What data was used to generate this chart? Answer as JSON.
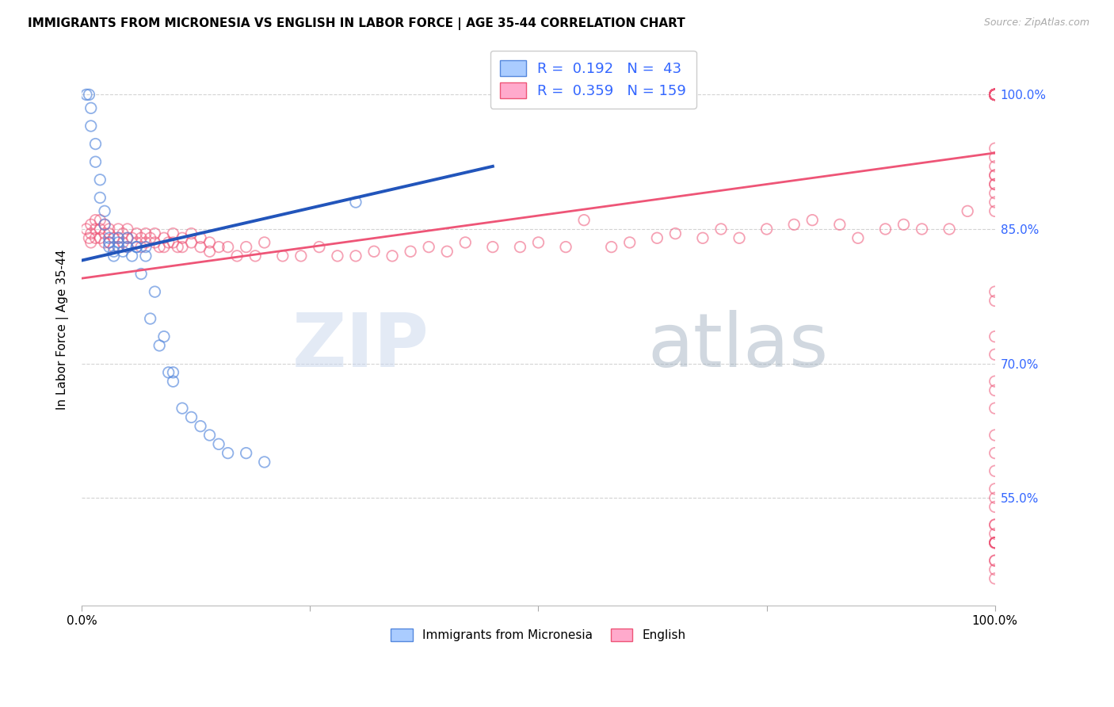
{
  "title": "IMMIGRANTS FROM MICRONESIA VS ENGLISH IN LABOR FORCE | AGE 35-44 CORRELATION CHART",
  "source_text": "Source: ZipAtlas.com",
  "ylabel": "In Labor Force | Age 35-44",
  "xlim": [
    0,
    1.0
  ],
  "ylim": [
    0.43,
    1.045
  ],
  "ytick_labels": [
    "55.0%",
    "70.0%",
    "85.0%",
    "100.0%"
  ],
  "ytick_positions": [
    0.55,
    0.7,
    0.85,
    1.0
  ],
  "grid_color": "#cccccc",
  "background_color": "#ffffff",
  "legend_R_blue": "0.192",
  "legend_N_blue": "43",
  "legend_R_pink": "0.359",
  "legend_N_pink": "159",
  "legend_label_blue": "Immigrants from Micronesia",
  "legend_label_pink": "English",
  "blue_color_edge": "#5588dd",
  "blue_color_face": "#aaccff",
  "pink_color_edge": "#ee5577",
  "pink_color_face": "#ffaacc",
  "blue_line_color": "#2255bb",
  "pink_line_color": "#ee5577",
  "watermark_zip": "ZIP",
  "watermark_atlas": "atlas",
  "blue_x": [
    0.005,
    0.008,
    0.01,
    0.01,
    0.015,
    0.015,
    0.02,
    0.02,
    0.025,
    0.025,
    0.03,
    0.03,
    0.03,
    0.035,
    0.035,
    0.04,
    0.04,
    0.04,
    0.045,
    0.05,
    0.05,
    0.055,
    0.06,
    0.06,
    0.065,
    0.07,
    0.07,
    0.075,
    0.08,
    0.085,
    0.09,
    0.095,
    0.1,
    0.1,
    0.11,
    0.12,
    0.13,
    0.14,
    0.15,
    0.16,
    0.18,
    0.2,
    0.3
  ],
  "blue_y": [
    1.0,
    1.0,
    0.985,
    0.965,
    0.945,
    0.925,
    0.905,
    0.885,
    0.87,
    0.855,
    0.84,
    0.835,
    0.83,
    0.825,
    0.82,
    0.84,
    0.835,
    0.83,
    0.825,
    0.84,
    0.83,
    0.82,
    0.83,
    0.83,
    0.8,
    0.83,
    0.82,
    0.75,
    0.78,
    0.72,
    0.73,
    0.69,
    0.69,
    0.68,
    0.65,
    0.64,
    0.63,
    0.62,
    0.61,
    0.6,
    0.6,
    0.59,
    0.88
  ],
  "pink_x": [
    0.005,
    0.008,
    0.01,
    0.01,
    0.01,
    0.015,
    0.015,
    0.015,
    0.02,
    0.02,
    0.02,
    0.025,
    0.025,
    0.025,
    0.03,
    0.03,
    0.03,
    0.035,
    0.035,
    0.04,
    0.04,
    0.04,
    0.045,
    0.045,
    0.05,
    0.05,
    0.05,
    0.055,
    0.06,
    0.06,
    0.065,
    0.065,
    0.07,
    0.07,
    0.075,
    0.08,
    0.08,
    0.085,
    0.09,
    0.09,
    0.095,
    0.1,
    0.1,
    0.105,
    0.11,
    0.11,
    0.12,
    0.12,
    0.13,
    0.13,
    0.14,
    0.14,
    0.15,
    0.16,
    0.17,
    0.18,
    0.19,
    0.2,
    0.22,
    0.24,
    0.26,
    0.28,
    0.3,
    0.32,
    0.34,
    0.36,
    0.38,
    0.4,
    0.42,
    0.45,
    0.48,
    0.5,
    0.53,
    0.55,
    0.58,
    0.6,
    0.63,
    0.65,
    0.68,
    0.7,
    0.72,
    0.75,
    0.78,
    0.8,
    0.83,
    0.85,
    0.88,
    0.9,
    0.92,
    0.95,
    0.97,
    1.0,
    1.0,
    1.0,
    1.0,
    1.0,
    1.0,
    1.0,
    1.0,
    1.0,
    1.0,
    1.0,
    1.0,
    1.0,
    1.0,
    1.0,
    1.0,
    1.0,
    1.0,
    1.0,
    1.0,
    1.0,
    1.0,
    1.0,
    1.0,
    1.0,
    1.0,
    1.0,
    1.0,
    1.0,
    1.0,
    1.0,
    1.0,
    1.0,
    1.0,
    1.0,
    1.0,
    1.0,
    1.0,
    1.0,
    1.0,
    1.0,
    1.0,
    1.0,
    1.0,
    1.0,
    1.0,
    1.0,
    1.0,
    1.0,
    1.0,
    1.0,
    1.0,
    1.0,
    1.0,
    1.0,
    1.0,
    1.0,
    1.0,
    1.0,
    1.0,
    1.0,
    1.0,
    1.0,
    1.0,
    1.0,
    1.0,
    1.0,
    1.0
  ],
  "pink_y": [
    0.85,
    0.84,
    0.855,
    0.845,
    0.835,
    0.86,
    0.85,
    0.84,
    0.86,
    0.85,
    0.84,
    0.855,
    0.845,
    0.835,
    0.85,
    0.845,
    0.835,
    0.84,
    0.83,
    0.85,
    0.84,
    0.83,
    0.845,
    0.835,
    0.85,
    0.84,
    0.83,
    0.84,
    0.845,
    0.835,
    0.84,
    0.83,
    0.845,
    0.835,
    0.84,
    0.845,
    0.835,
    0.83,
    0.84,
    0.83,
    0.835,
    0.845,
    0.835,
    0.83,
    0.84,
    0.83,
    0.845,
    0.835,
    0.84,
    0.83,
    0.835,
    0.825,
    0.83,
    0.83,
    0.82,
    0.83,
    0.82,
    0.835,
    0.82,
    0.82,
    0.83,
    0.82,
    0.82,
    0.825,
    0.82,
    0.825,
    0.83,
    0.825,
    0.835,
    0.83,
    0.83,
    0.835,
    0.83,
    0.86,
    0.83,
    0.835,
    0.84,
    0.845,
    0.84,
    0.85,
    0.84,
    0.85,
    0.855,
    0.86,
    0.855,
    0.84,
    0.85,
    0.855,
    0.85,
    0.85,
    0.87,
    1.0,
    1.0,
    1.0,
    1.0,
    1.0,
    1.0,
    1.0,
    1.0,
    1.0,
    1.0,
    1.0,
    1.0,
    1.0,
    1.0,
    1.0,
    1.0,
    1.0,
    1.0,
    1.0,
    1.0,
    1.0,
    1.0,
    1.0,
    1.0,
    1.0,
    1.0,
    1.0,
    1.0,
    1.0,
    1.0,
    1.0,
    1.0,
    1.0,
    0.94,
    0.9,
    0.78,
    0.91,
    0.92,
    0.87,
    0.88,
    0.89,
    0.9,
    0.91,
    0.93,
    0.77,
    0.73,
    0.65,
    0.5,
    0.52,
    0.71,
    0.68,
    0.62,
    0.67,
    0.6,
    0.58,
    0.56,
    0.54,
    0.52,
    0.5,
    0.48,
    0.47,
    0.5,
    0.48,
    0.46,
    0.5,
    0.51,
    0.5,
    0.55
  ]
}
